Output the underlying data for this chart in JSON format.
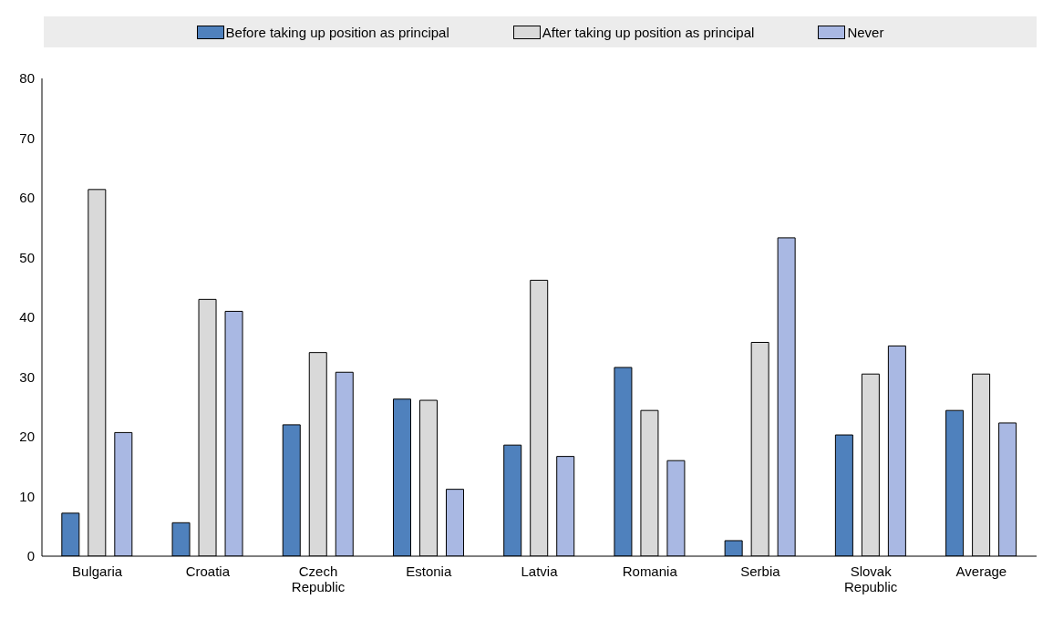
{
  "chart_data": {
    "type": "bar",
    "categories": [
      "Bulgaria",
      "Croatia",
      "Czech Republic",
      "Estonia",
      "Latvia",
      "Romania",
      "Serbia",
      "Slovak Republic",
      "Average"
    ],
    "series": [
      {
        "name": "Before taking up position as principal",
        "color": "#4f81bd",
        "values": [
          7.2,
          5.6,
          22.0,
          26.3,
          18.6,
          31.6,
          2.6,
          20.3,
          24.4
        ]
      },
      {
        "name": "After taking up position as principal",
        "color": "#d9d9d9",
        "values": [
          61.4,
          43.0,
          34.1,
          26.1,
          46.2,
          24.4,
          35.8,
          30.5,
          30.5
        ]
      },
      {
        "name": "Never",
        "color": "#a9b8e3",
        "values": [
          20.7,
          41.0,
          30.8,
          11.2,
          16.7,
          16.0,
          53.3,
          35.2,
          22.3
        ]
      }
    ],
    "ylim": [
      0,
      80
    ],
    "yticks": [
      0,
      10,
      20,
      30,
      40,
      50,
      60,
      70,
      80
    ],
    "grid": false,
    "legend": "top"
  }
}
